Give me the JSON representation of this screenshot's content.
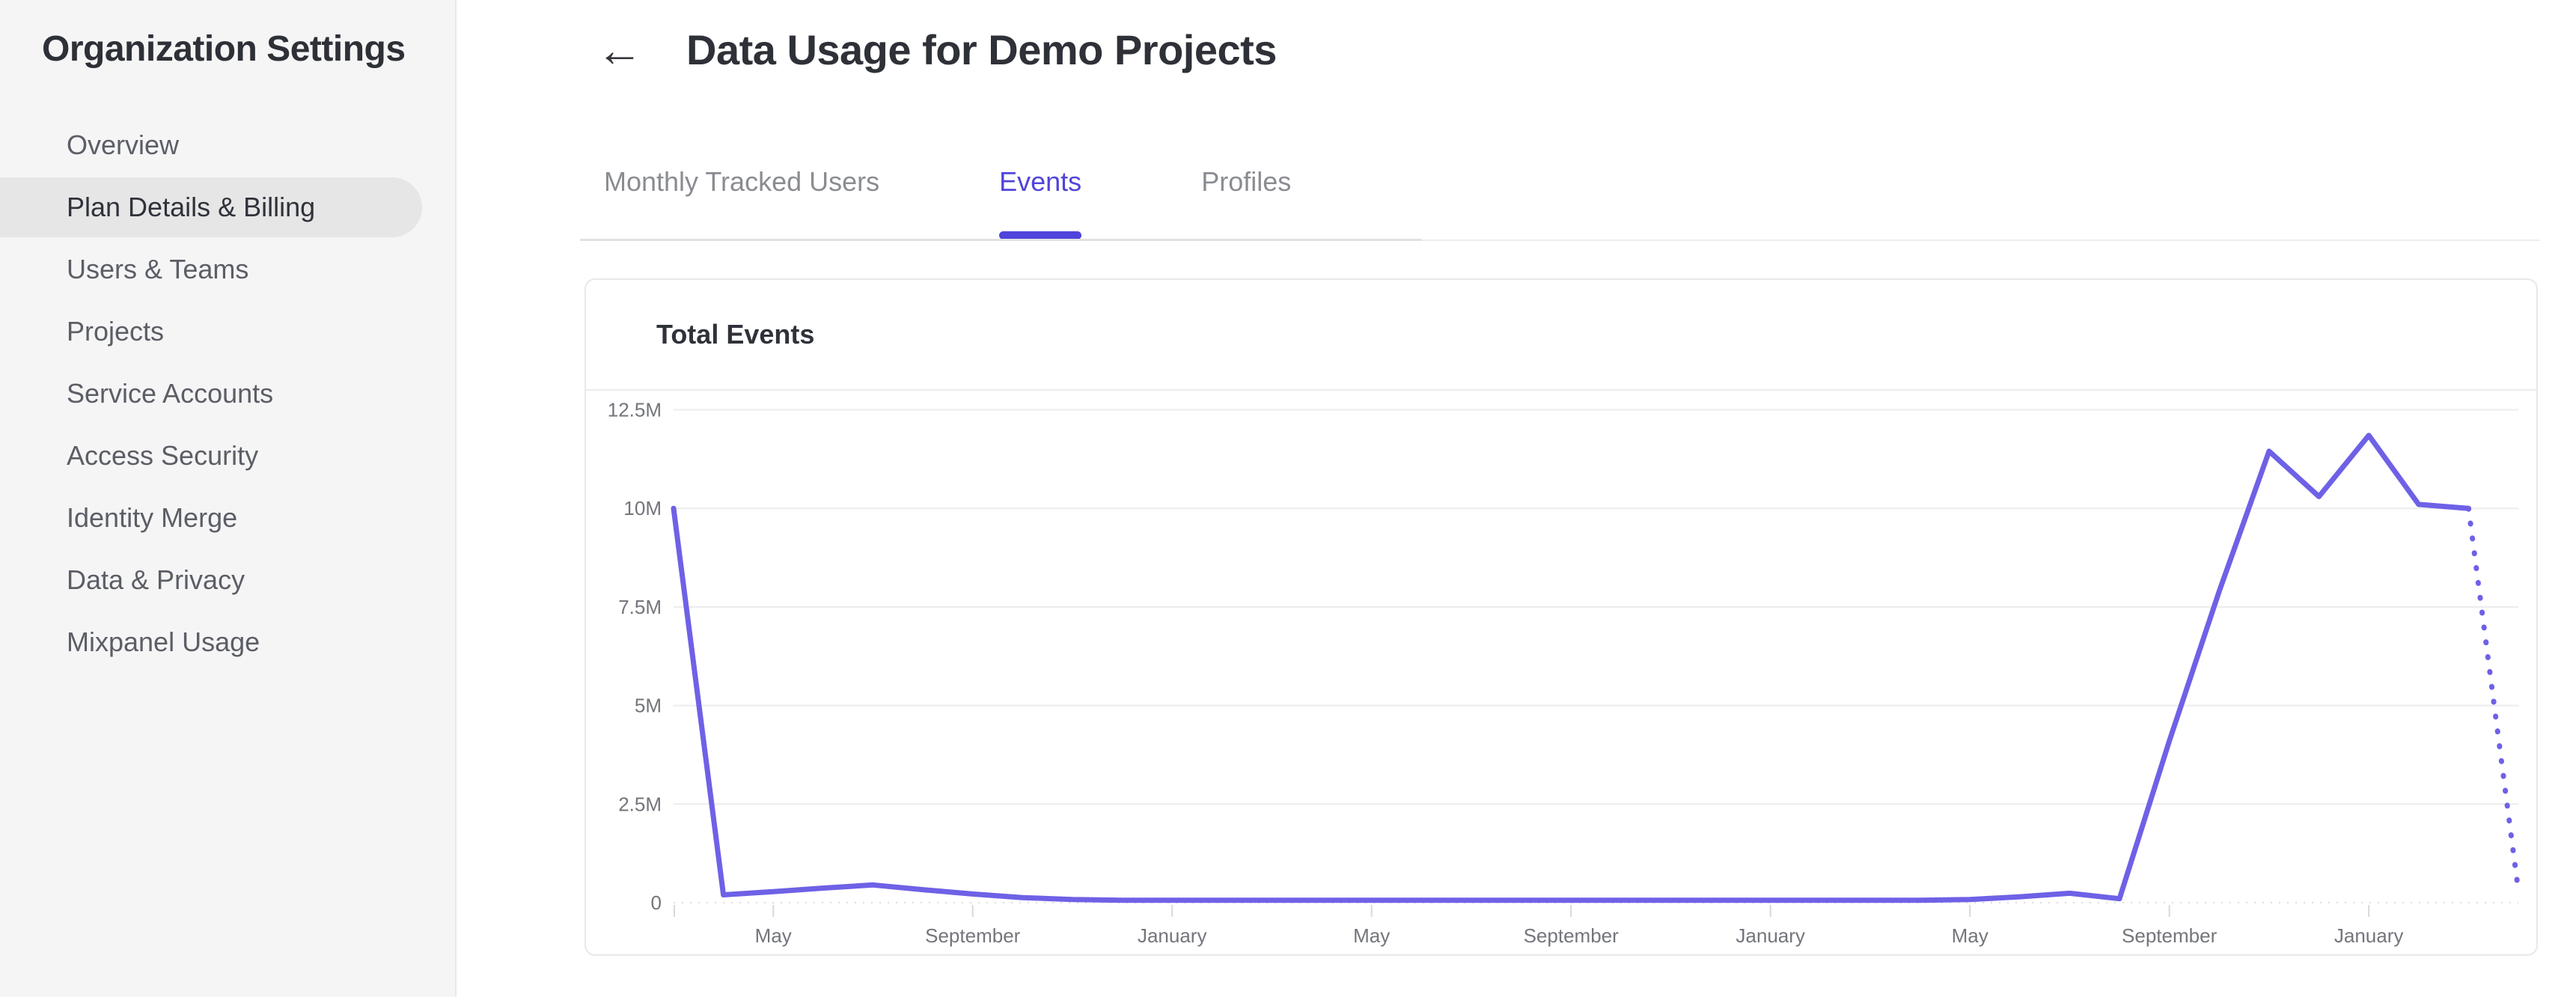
{
  "sidebar": {
    "title": "Organization Settings",
    "items": [
      {
        "label": "Overview",
        "selected": false
      },
      {
        "label": "Plan Details & Billing",
        "selected": true
      },
      {
        "label": "Users & Teams",
        "selected": false
      },
      {
        "label": "Projects",
        "selected": false
      },
      {
        "label": "Service Accounts",
        "selected": false
      },
      {
        "label": "Access Security",
        "selected": false
      },
      {
        "label": "Identity Merge",
        "selected": false
      },
      {
        "label": "Data & Privacy",
        "selected": false
      },
      {
        "label": "Mixpanel Usage",
        "selected": false
      }
    ]
  },
  "header": {
    "back_glyph": "←",
    "title": "Data Usage for Demo Projects"
  },
  "tabs": {
    "items": [
      {
        "label": "Monthly Tracked Users",
        "active": false
      },
      {
        "label": "Events",
        "active": true
      },
      {
        "label": "Profiles",
        "active": false
      }
    ]
  },
  "card": {
    "title": "Total Events"
  },
  "colors": {
    "accent": "#4f44db",
    "line": "#6e61e6",
    "sidebar_bg": "#f5f5f6",
    "selected_pill": "#e6e6e7",
    "grid": "#ececec",
    "axis_text": "#73757b"
  },
  "chart_data": {
    "type": "line",
    "title": "Total Events",
    "value_unit": "millions of events",
    "ylim": [
      0,
      12.5
    ],
    "grid": true,
    "legend": "none",
    "y_ticks": [
      {
        "value": 0,
        "label": "0"
      },
      {
        "value": 2.5,
        "label": "2.5M"
      },
      {
        "value": 5,
        "label": "5M"
      },
      {
        "value": 7.5,
        "label": "7.5M"
      },
      {
        "value": 10,
        "label": "10M"
      },
      {
        "value": 12.5,
        "label": "12.5M"
      }
    ],
    "x_ticks": [
      {
        "index": 2,
        "label": "May"
      },
      {
        "index": 6,
        "label": "September"
      },
      {
        "index": 10,
        "label": "January"
      },
      {
        "index": 14,
        "label": "May"
      },
      {
        "index": 18,
        "label": "September"
      },
      {
        "index": 22,
        "label": "January"
      },
      {
        "index": 26,
        "label": "May"
      },
      {
        "index": 30,
        "label": "September"
      },
      {
        "index": 34,
        "label": "January"
      }
    ],
    "series": [
      {
        "name": "Total Events",
        "color": "#6e61e6",
        "projected_from_index": 36,
        "values": [
          10,
          0.2,
          0.28,
          0.37,
          0.45,
          0.33,
          0.22,
          0.13,
          0.08,
          0.06,
          0.06,
          0.06,
          0.06,
          0.06,
          0.06,
          0.06,
          0.06,
          0.06,
          0.06,
          0.06,
          0.06,
          0.06,
          0.06,
          0.06,
          0.06,
          0.06,
          0.08,
          0.15,
          0.24,
          0.1,
          4.1,
          7.9,
          11.45,
          10.3,
          11.85,
          10.1,
          10.0,
          0.3
        ]
      }
    ]
  }
}
